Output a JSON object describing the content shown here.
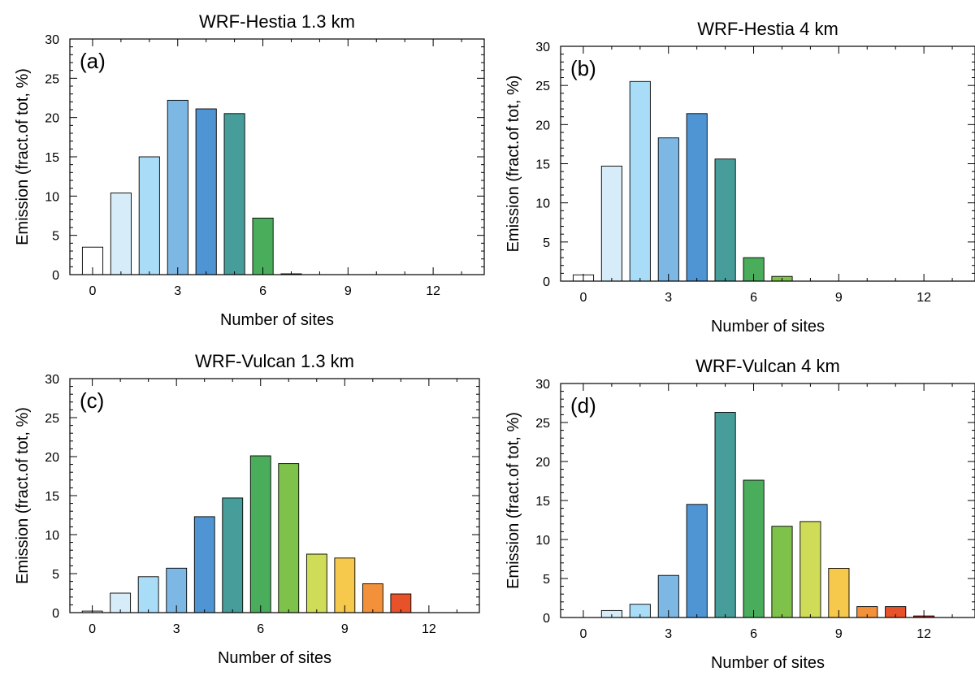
{
  "chart_data": [
    {
      "type": "bar",
      "panel_label": "(a)",
      "title": "WRF-Hestia 1.3 km",
      "xlabel": "Number of sites",
      "ylabel": "Emission (fract.of tot, %)",
      "xlim": [
        -0.8,
        13.8
      ],
      "ylim": [
        0,
        30
      ],
      "xticks": [
        0,
        3,
        6,
        9,
        12
      ],
      "yticks": [
        0,
        5,
        10,
        15,
        20,
        25,
        30
      ],
      "x": [
        0,
        1,
        2,
        3,
        4,
        5,
        6,
        7,
        8,
        9,
        10,
        11,
        12,
        13
      ],
      "values": [
        3.5,
        10.4,
        15.0,
        22.2,
        21.1,
        20.5,
        7.2,
        0.1,
        0,
        0,
        0,
        0,
        0,
        0
      ],
      "grid": false
    },
    {
      "type": "bar",
      "panel_label": "(b)",
      "title": "WRF-Hestia 4 km",
      "xlabel": "Number of sites",
      "ylabel": "Emission (fract.of tot, %)",
      "xlim": [
        -0.8,
        13.8
      ],
      "ylim": [
        0,
        30
      ],
      "xticks": [
        0,
        3,
        6,
        9,
        12
      ],
      "yticks": [
        0,
        5,
        10,
        15,
        20,
        25,
        30
      ],
      "x": [
        0,
        1,
        2,
        3,
        4,
        5,
        6,
        7,
        8,
        9,
        10,
        11,
        12,
        13
      ],
      "values": [
        0.8,
        14.7,
        25.5,
        18.3,
        21.4,
        15.6,
        3.0,
        0.6,
        0,
        0,
        0,
        0,
        0,
        0
      ],
      "grid": false
    },
    {
      "type": "bar",
      "panel_label": "(c)",
      "title": "WRF-Vulcan 1.3 km",
      "xlabel": "Number of sites",
      "ylabel": "Emission (fract.of tot, %)",
      "xlim": [
        -0.8,
        13.8
      ],
      "ylim": [
        0,
        30
      ],
      "xticks": [
        0,
        3,
        6,
        9,
        12
      ],
      "yticks": [
        0,
        5,
        10,
        15,
        20,
        25,
        30
      ],
      "x": [
        0,
        1,
        2,
        3,
        4,
        5,
        6,
        7,
        8,
        9,
        10,
        11,
        12,
        13
      ],
      "values": [
        0.2,
        2.5,
        4.6,
        5.7,
        12.3,
        14.7,
        20.1,
        19.1,
        7.5,
        7.0,
        3.7,
        2.4,
        0,
        0
      ],
      "grid": false
    },
    {
      "type": "bar",
      "panel_label": "(d)",
      "title": "WRF-Vulcan 4 km",
      "xlabel": "Number of sites",
      "ylabel": "Emission (fract.of tot, %)",
      "xlim": [
        -0.8,
        13.8
      ],
      "ylim": [
        0,
        30
      ],
      "xticks": [
        0,
        3,
        6,
        9,
        12
      ],
      "yticks": [
        0,
        5,
        10,
        15,
        20,
        25,
        30
      ],
      "x": [
        0,
        1,
        2,
        3,
        4,
        5,
        6,
        7,
        8,
        9,
        10,
        11,
        12,
        13
      ],
      "values": [
        0,
        0.9,
        1.7,
        5.4,
        14.5,
        26.3,
        17.6,
        11.7,
        12.3,
        6.3,
        1.4,
        1.4,
        0.2,
        0
      ],
      "grid": false
    }
  ],
  "bar_colors": [
    "#ffffff",
    "#d6edf9",
    "#a9dcf7",
    "#7db7e3",
    "#5095d3",
    "#469d9a",
    "#4aad5b",
    "#7fc24b",
    "#cfdc58",
    "#f6c94c",
    "#f3913b",
    "#e8522a",
    "#c7322a",
    "#9e1b1b"
  ]
}
